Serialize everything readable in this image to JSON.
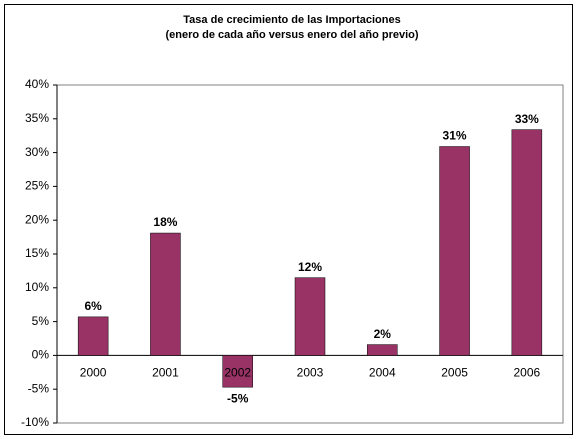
{
  "chart_data": {
    "type": "bar",
    "title": "Tasa de crecimiento de las Importaciones",
    "subtitle": "(enero de cada año versus enero del año previo)",
    "categories": [
      "2000",
      "2001",
      "2002",
      "2003",
      "2004",
      "2005",
      "2006"
    ],
    "values": [
      5.7,
      18.1,
      -4.7,
      11.5,
      1.6,
      30.9,
      33.4
    ],
    "value_labels": [
      "6%",
      "18%",
      "-5%",
      "12%",
      "2%",
      "31%",
      "33%"
    ],
    "color": "#993366",
    "ylim": [
      -10,
      40
    ],
    "yticks": [
      {
        "value": -10,
        "label": "-10%"
      },
      {
        "value": -5,
        "label": "-5%"
      },
      {
        "value": 0,
        "label": "0%"
      },
      {
        "value": 5,
        "label": "5%"
      },
      {
        "value": 10,
        "label": "10%"
      },
      {
        "value": 15,
        "label": "15%"
      },
      {
        "value": 20,
        "label": "20%"
      },
      {
        "value": 25,
        "label": "25%"
      },
      {
        "value": 30,
        "label": "30%"
      },
      {
        "value": 35,
        "label": "35%"
      },
      {
        "value": 40,
        "label": "40%"
      }
    ]
  }
}
